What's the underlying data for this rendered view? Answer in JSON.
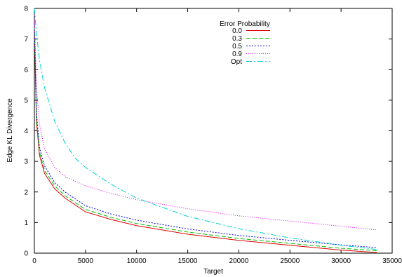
{
  "chart_data": {
    "type": "line",
    "title": "",
    "xlabel": "Target",
    "ylabel": "Edge KL Divergence",
    "xlim": [
      0,
      35000
    ],
    "ylim": [
      0,
      8
    ],
    "xticks": [
      0,
      5000,
      10000,
      15000,
      20000,
      25000,
      30000,
      35000
    ],
    "yticks": [
      0,
      1,
      2,
      3,
      4,
      5,
      6,
      7,
      8
    ],
    "grid": false,
    "legend": {
      "title": "Error Probability",
      "position": "top-center"
    },
    "series": [
      {
        "name": "0.0",
        "color": "#e00000",
        "dash": "solid",
        "x": [
          0,
          200,
          500,
          1000,
          2000,
          3000,
          5000,
          7500,
          10000,
          15000,
          20000,
          25000,
          30000,
          33500
        ],
        "y": [
          7.3,
          4.3,
          3.2,
          2.6,
          2.1,
          1.8,
          1.35,
          1.1,
          0.9,
          0.62,
          0.42,
          0.26,
          0.1,
          0.02
        ]
      },
      {
        "name": "0.3",
        "color": "#00c000",
        "dash": "6,3",
        "x": [
          0,
          200,
          500,
          1000,
          2000,
          3000,
          5000,
          7500,
          10000,
          15000,
          20000,
          25000,
          30000,
          33500
        ],
        "y": [
          7.4,
          4.4,
          3.3,
          2.7,
          2.2,
          1.88,
          1.43,
          1.17,
          0.97,
          0.69,
          0.48,
          0.32,
          0.16,
          0.08
        ]
      },
      {
        "name": "0.5",
        "color": "#0000e0",
        "dash": "2,2",
        "x": [
          0,
          200,
          500,
          1000,
          2000,
          3000,
          5000,
          7500,
          10000,
          15000,
          20000,
          25000,
          30000,
          33500
        ],
        "y": [
          7.5,
          4.6,
          3.45,
          2.85,
          2.3,
          2.0,
          1.55,
          1.28,
          1.08,
          0.79,
          0.58,
          0.42,
          0.27,
          0.18
        ]
      },
      {
        "name": "0.9",
        "color": "#e000e0",
        "dash": "1,2",
        "x": [
          0,
          200,
          500,
          1000,
          2000,
          3000,
          5000,
          7500,
          10000,
          15000,
          20000,
          25000,
          30000,
          33500
        ],
        "y": [
          7.8,
          5.5,
          4.2,
          3.4,
          2.8,
          2.5,
          2.2,
          1.95,
          1.75,
          1.45,
          1.22,
          1.05,
          0.88,
          0.76
        ]
      },
      {
        "name": "Opt",
        "color": "#00d0d0",
        "dash": "8,3,2,3",
        "x": [
          0,
          200,
          500,
          1000,
          2000,
          3000,
          4000,
          5000,
          7500,
          10000,
          15000,
          20000,
          25000,
          30000,
          33500
        ],
        "y": [
          8.0,
          7.2,
          6.3,
          5.4,
          4.3,
          3.6,
          3.1,
          2.8,
          2.25,
          1.8,
          1.2,
          0.8,
          0.5,
          0.26,
          0.12
        ]
      }
    ]
  }
}
